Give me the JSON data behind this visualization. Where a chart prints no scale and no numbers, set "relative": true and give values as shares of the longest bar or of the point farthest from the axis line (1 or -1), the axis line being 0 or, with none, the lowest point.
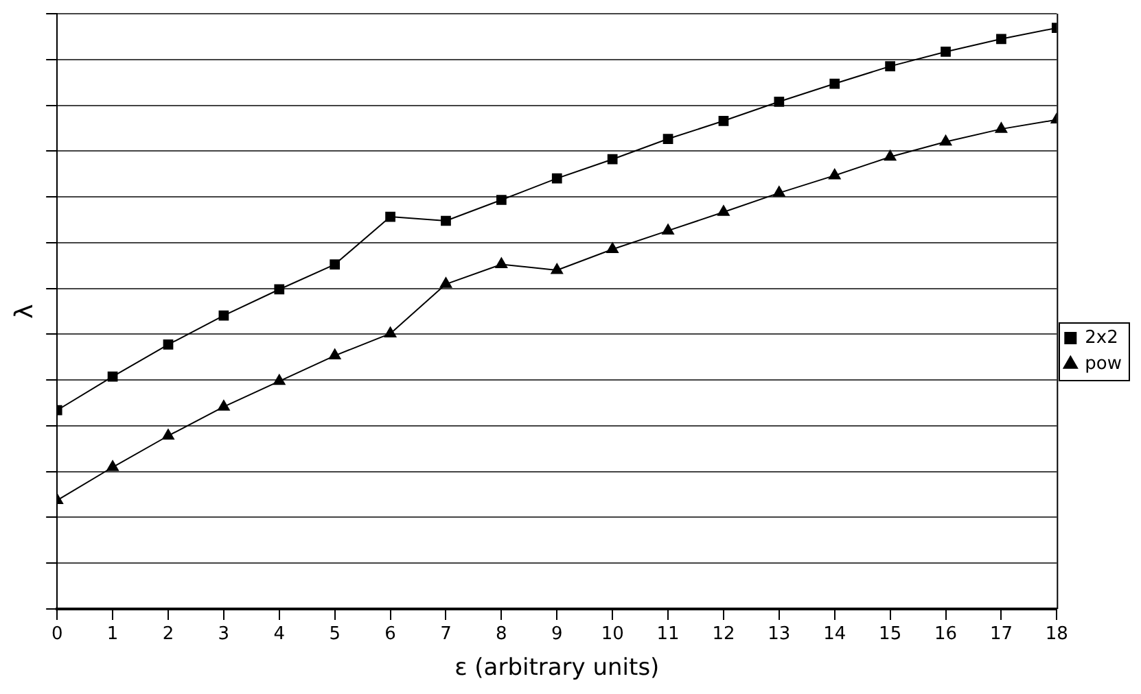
{
  "chart_data": {
    "type": "line",
    "xlabel": "ε (arbitrary units)",
    "ylabel": "λ",
    "relative": true,
    "x": [
      0,
      1,
      2,
      3,
      4,
      5,
      6,
      7,
      8,
      9,
      10,
      11,
      12,
      13,
      14,
      15,
      16,
      17,
      18
    ],
    "xlim": [
      0,
      18
    ],
    "xticks": [
      0,
      1,
      2,
      3,
      4,
      5,
      6,
      7,
      8,
      9,
      10,
      11,
      12,
      13,
      14,
      15,
      16,
      17,
      18
    ],
    "grid": "y",
    "legend": "right",
    "line_style": "solid",
    "series": [
      {
        "name": "2x2",
        "color": "#000000",
        "marker": "square",
        "values": [
          0.342,
          0.4,
          0.455,
          0.505,
          0.55,
          0.593,
          0.675,
          0.668,
          0.704,
          0.741,
          0.774,
          0.809,
          0.84,
          0.873,
          0.904,
          0.934,
          0.959,
          0.981,
          1
        ]
      },
      {
        "name": "pow",
        "color": "#000000",
        "marker": "triangle",
        "values": [
          0.187,
          0.244,
          0.298,
          0.348,
          0.392,
          0.436,
          0.474,
          0.559,
          0.593,
          0.583,
          0.619,
          0.651,
          0.683,
          0.716,
          0.746,
          0.778,
          0.804,
          0.826,
          0.842
        ]
      }
    ]
  }
}
